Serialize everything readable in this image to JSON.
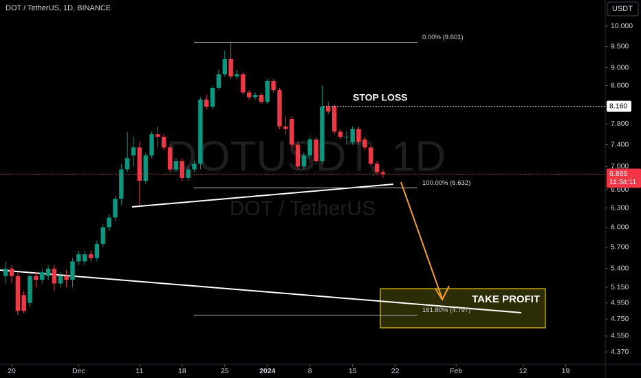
{
  "chart_data": {
    "type": "candlestick",
    "title": "DOT / TetherUS, 1D, BINANCE",
    "watermark": "DOTUSDT, 1D",
    "watermark_sub": "DOT / TetherUS",
    "currency": "USDT",
    "log_scale": true,
    "up_color": "#089981",
    "down_color": "#f23645",
    "ylim": [
      4.235,
      10.69
    ],
    "xlim": [
      -1.92,
      97.5
    ],
    "yticks": [
      {
        "value": 10,
        "label": "10.000"
      },
      {
        "value": 9.5,
        "label": "9.500"
      },
      {
        "value": 9,
        "label": "9.000"
      },
      {
        "value": 8.6,
        "label": "8.600"
      },
      {
        "value": 7.8,
        "label": "7.800"
      },
      {
        "value": 7.4,
        "label": "7.400"
      },
      {
        "value": 7,
        "label": "7.000"
      },
      {
        "value": 6.6,
        "label": "6.600"
      },
      {
        "value": 6.3,
        "label": "6.300"
      },
      {
        "value": 6,
        "label": "6.000"
      },
      {
        "value": 5.7,
        "label": "5.700"
      },
      {
        "value": 5.4,
        "label": "5.400"
      },
      {
        "value": 5.15,
        "label": "5.150"
      },
      {
        "value": 4.95,
        "label": "4.950"
      },
      {
        "value": 4.75,
        "label": "4.750"
      },
      {
        "value": 4.55,
        "label": "4.550"
      },
      {
        "value": 4.37,
        "label": "4.370"
      }
    ],
    "xticks": [
      {
        "value": 0,
        "label": "20"
      },
      {
        "value": 11,
        "label": "Dec"
      },
      {
        "value": 21,
        "label": "11"
      },
      {
        "value": 28,
        "label": "18"
      },
      {
        "value": 35,
        "label": "25"
      },
      {
        "value": 42,
        "label": "2024"
      },
      {
        "value": 49,
        "label": "8"
      },
      {
        "value": 56,
        "label": "15"
      },
      {
        "value": 63,
        "label": "22"
      },
      {
        "value": 73,
        "label": "Feb"
      },
      {
        "value": 84,
        "label": "12"
      },
      {
        "value": 91,
        "label": "19"
      }
    ],
    "x": [
      -1,
      0,
      1,
      2,
      3,
      4,
      5,
      6,
      7,
      8,
      9,
      10,
      11,
      12,
      13,
      14,
      15,
      16,
      17,
      18,
      19,
      20,
      21,
      22,
      23,
      24,
      25,
      26,
      27,
      28,
      29,
      30,
      31,
      32,
      33,
      34,
      35,
      36,
      37,
      38,
      39,
      40,
      41,
      42,
      43,
      44,
      45,
      46,
      47,
      48,
      49,
      50,
      51,
      52,
      53,
      54,
      55,
      56,
      57,
      58,
      59,
      60,
      61
    ],
    "open": [
      5.3,
      5.4,
      5.3,
      5.05,
      4.95,
      5.3,
      5.25,
      5.3,
      5.4,
      5.2,
      5.3,
      5.25,
      5.5,
      5.5,
      5.6,
      5.55,
      5.75,
      6,
      6.15,
      6.45,
      6.95,
      7.2,
      7.35,
      6.75,
      7.2,
      7.6,
      7.55,
      7.35,
      6.95,
      7.1,
      6.8,
      6.95,
      7.05,
      8.3,
      8.15,
      8.55,
      8.85,
      9.2,
      8.8,
      8.85,
      8.45,
      8.35,
      8.4,
      8.25,
      8.7,
      8.5,
      7.75,
      7.9,
      7.4,
      7,
      7.2,
      7.5,
      7.1,
      8.15,
      8.15,
      7.65,
      7.55,
      7.45,
      7.7,
      7.5,
      7.35,
      7.05,
      6.9
    ],
    "high": [
      5.5,
      5.45,
      5.35,
      5.1,
      5.35,
      5.35,
      5.4,
      5.45,
      5.45,
      5.35,
      5.38,
      5.55,
      5.65,
      5.65,
      5.65,
      5.8,
      6.05,
      6.2,
      6.5,
      7.05,
      7.65,
      7.55,
      7.45,
      7.25,
      7.65,
      7.75,
      7.6,
      7.4,
      7.15,
      7.15,
      7,
      7.1,
      8.35,
      8.4,
      8.6,
      8.95,
      9.4,
      9.6,
      8.95,
      8.9,
      8.5,
      8.45,
      8.45,
      8.75,
      8.75,
      8.55,
      7.95,
      7.95,
      7.45,
      7.25,
      7.55,
      7.55,
      8.6,
      8.25,
      8.2,
      7.7,
      7.65,
      7.75,
      7.75,
      7.55,
      7.4,
      7.1,
      6.95
    ],
    "low": [
      5.2,
      5.2,
      4.8,
      4.82,
      4.9,
      5.15,
      5.2,
      5.25,
      5.1,
      5.15,
      5.15,
      5.15,
      5.45,
      5.45,
      5.5,
      5.5,
      5.7,
      5.95,
      6.1,
      6.35,
      6.9,
      7,
      6.35,
      6.7,
      7.15,
      7.35,
      7.3,
      6.9,
      6.9,
      6.75,
      6.75,
      6.9,
      6.95,
      8.1,
      8.1,
      8.5,
      8.8,
      8.75,
      8.75,
      8.4,
      8.3,
      8.3,
      8.2,
      8.2,
      8.45,
      7.7,
      7.6,
      7.35,
      6.95,
      6.95,
      7.15,
      7.05,
      7.05,
      8,
      7.6,
      7.5,
      7.4,
      7.4,
      7.4,
      7.3,
      7,
      6.85,
      6.8
    ],
    "close": [
      5.4,
      5.3,
      4.85,
      4.85,
      5.3,
      5.25,
      5.35,
      5.4,
      5.2,
      5.3,
      5.25,
      5.5,
      5.6,
      5.6,
      5.55,
      5.75,
      6,
      6.15,
      6.45,
      6.95,
      7.15,
      7.35,
      6.75,
      7.2,
      7.6,
      7.55,
      7.35,
      6.95,
      7.1,
      6.8,
      6.95,
      7.05,
      8.3,
      8.15,
      8.55,
      8.85,
      9.2,
      8.8,
      8.85,
      8.45,
      8.35,
      8.4,
      8.25,
      8.7,
      8.5,
      7.75,
      7.7,
      7.4,
      7,
      7.2,
      7.5,
      7.1,
      8.15,
      8.05,
      7.65,
      7.55,
      7.55,
      7.7,
      7.45,
      7.35,
      7.05,
      6.9,
      6.866
    ],
    "fib_levels": [
      {
        "value": 9.601,
        "label": "0.00% (9.601)"
      },
      {
        "value": 6.632,
        "label": "100.00% (6.632)"
      },
      {
        "value": 4.797,
        "label": "161.80% (4.797)"
      }
    ],
    "stop_loss": {
      "text": "STOP LOSS",
      "price": {
        "value": 8.16,
        "label": "8.160"
      }
    },
    "take_profit": "TAKE PROFIT",
    "current_price": 6.866,
    "countdown": "11:34:11"
  }
}
